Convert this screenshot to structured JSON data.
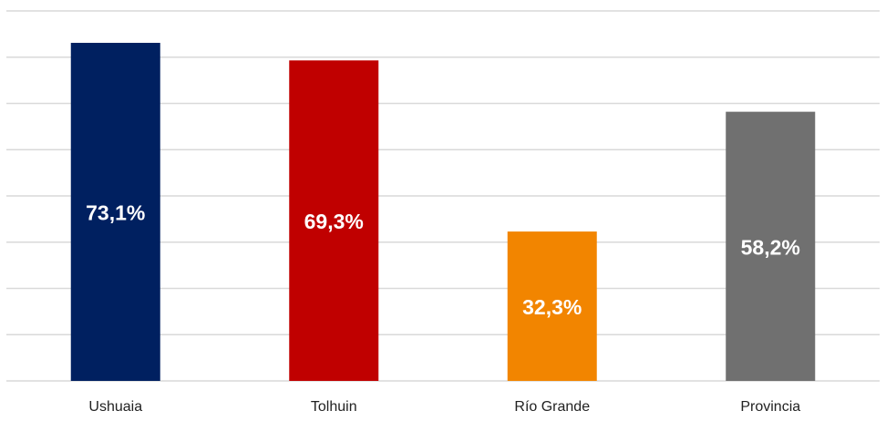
{
  "chart_data": {
    "type": "bar",
    "categories": [
      "Ushuaia",
      "Tolhuin",
      "Río Grande",
      "Provincia"
    ],
    "values": [
      73.1,
      69.3,
      32.3,
      58.2
    ],
    "value_labels": [
      "73,1%",
      "69,3%",
      "32,3%",
      "58,2%"
    ],
    "colors": [
      "#002060",
      "#c00000",
      "#f28500",
      "#707070"
    ],
    "ylim": [
      0,
      80
    ],
    "yticks": [
      0,
      10,
      20,
      30,
      40,
      50,
      60,
      70,
      80
    ],
    "grid": true
  }
}
